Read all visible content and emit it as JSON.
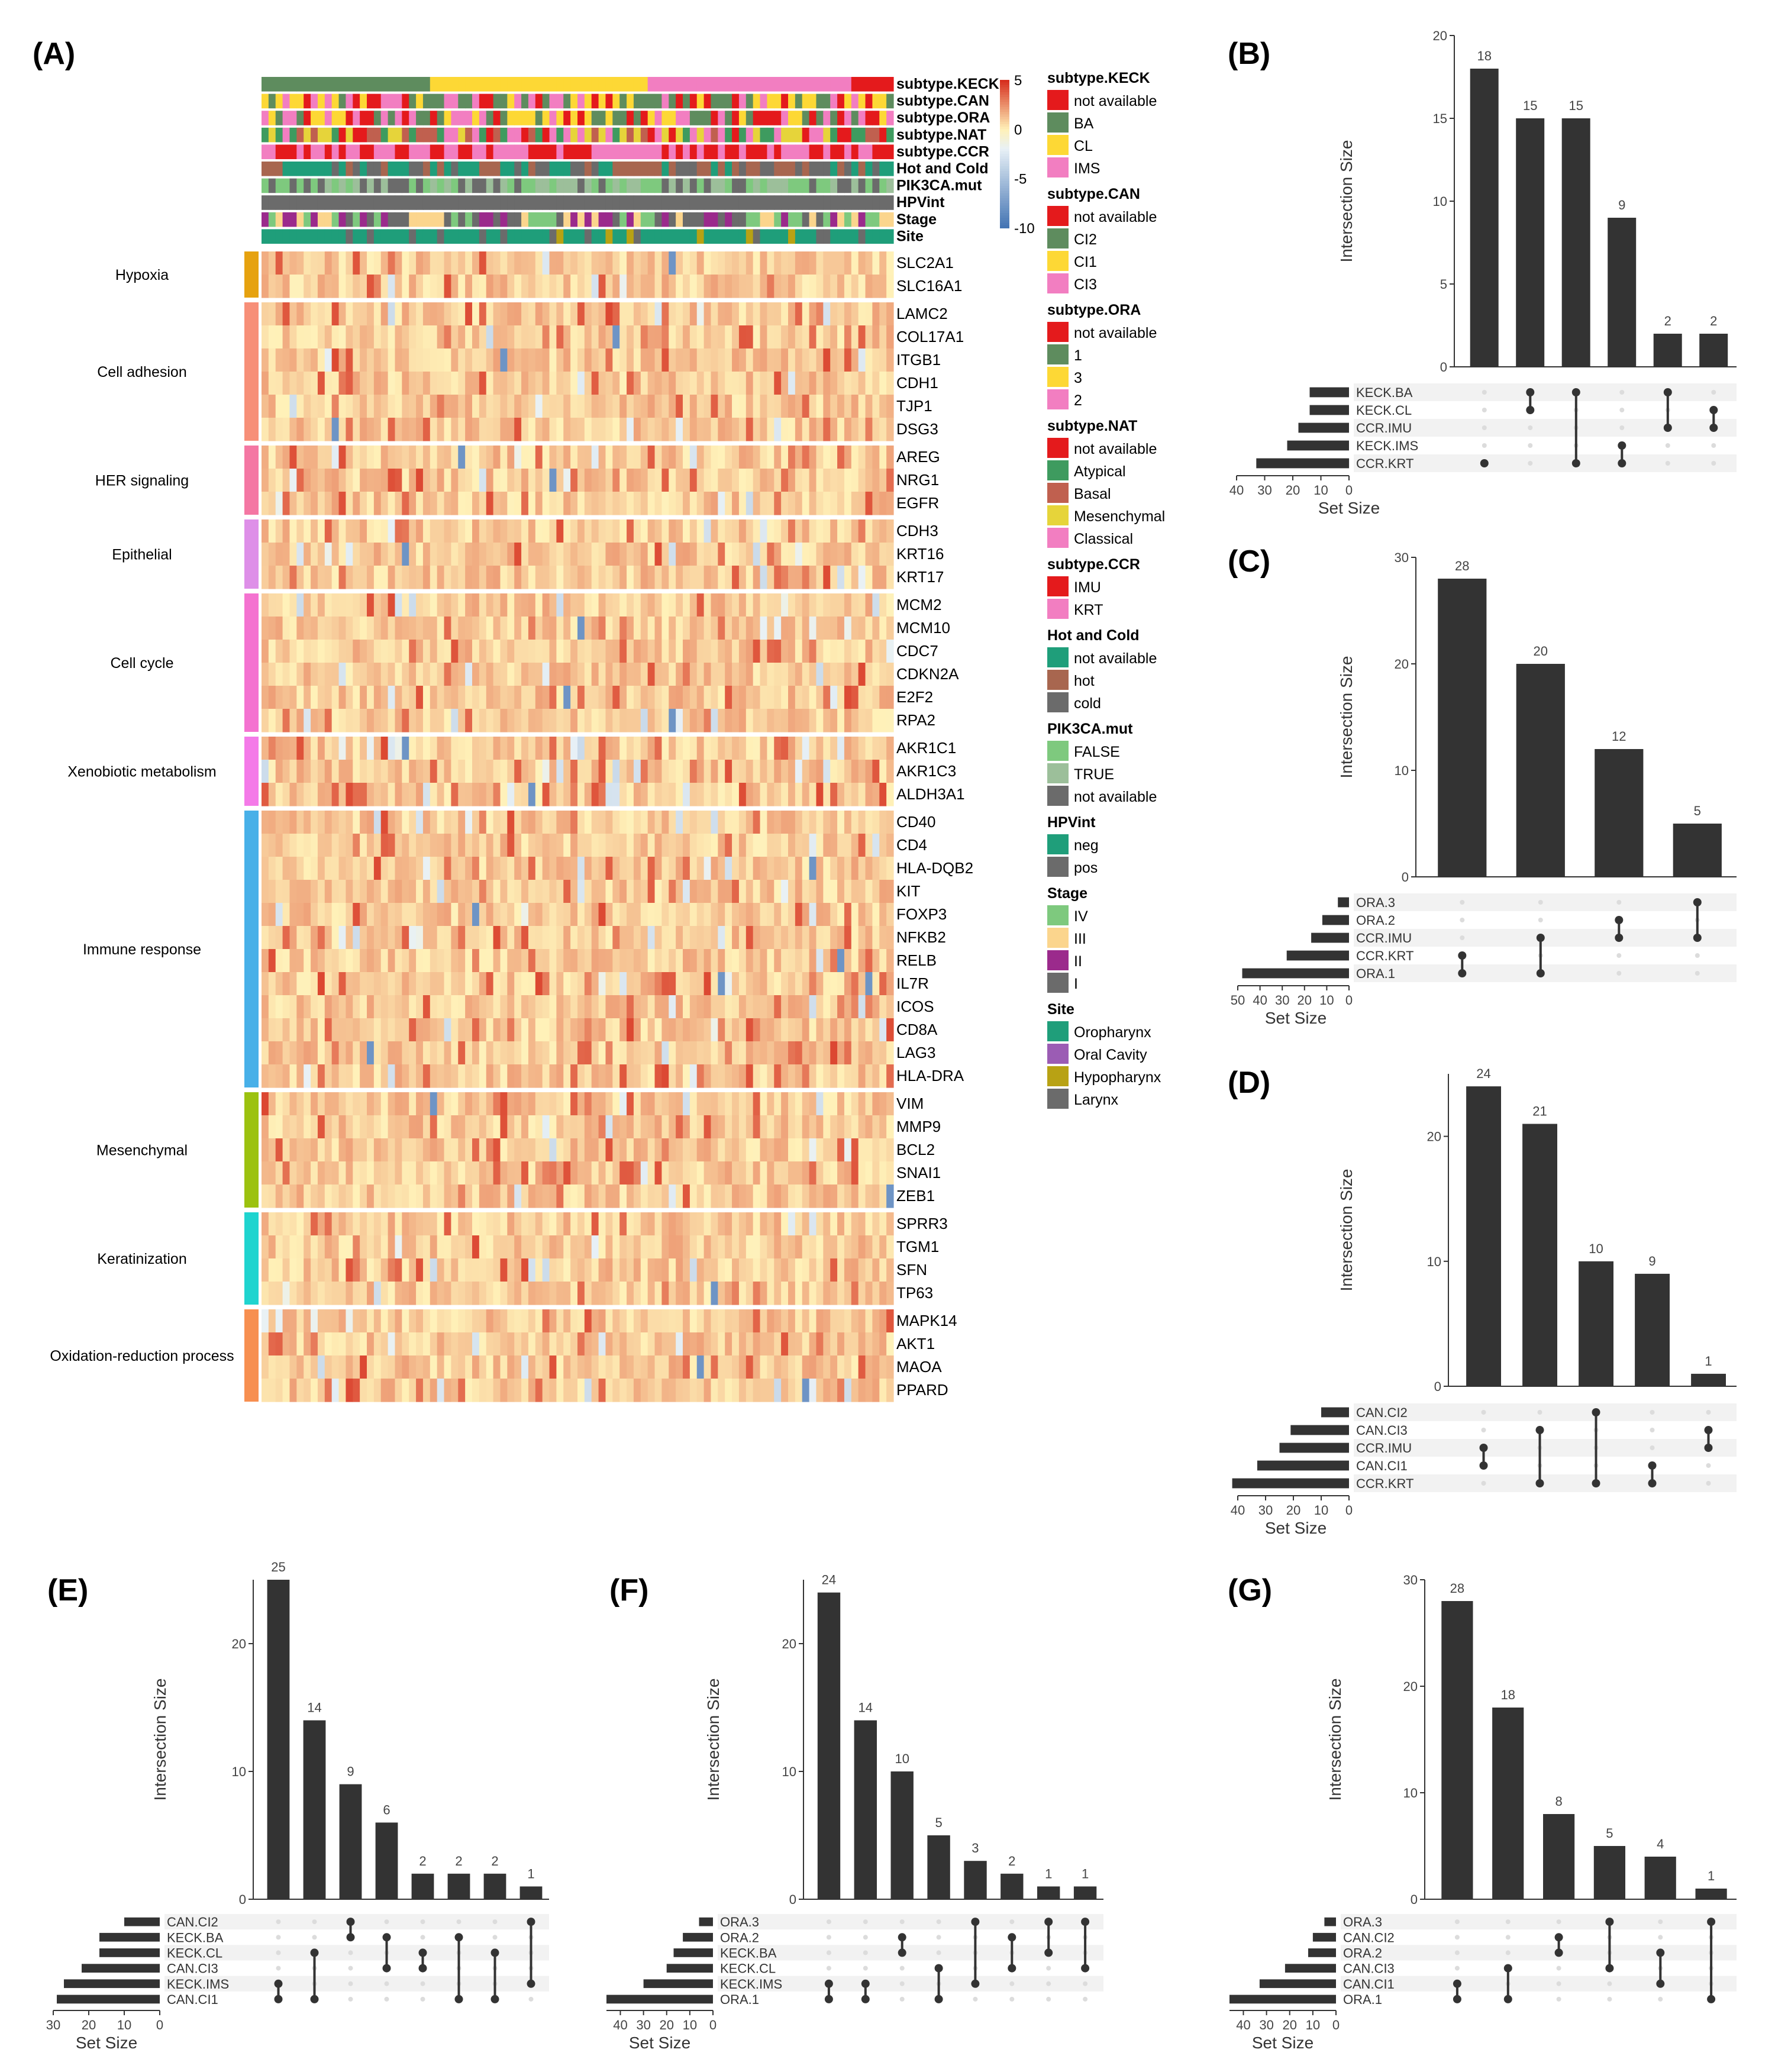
{
  "chart_data": [
    {
      "panel": "(A)",
      "type": "heatmap",
      "scale": {
        "ticks": [
          5,
          0,
          -5,
          -10
        ],
        "range": [
          -10,
          5
        ]
      },
      "annotation_tracks": [
        "subtype.KECK",
        "subtype.CAN",
        "subtype.ORA",
        "subtype.NAT",
        "subtype.CCR",
        "Hot and Cold",
        "PIK3CA.mut",
        "HPVint",
        "Stage",
        "Site"
      ],
      "legends": [
        {
          "title": "subtype.KECK",
          "items": [
            {
              "label": "not available",
              "color": "#e41a1c"
            },
            {
              "label": "BA",
              "color": "#5e8c5e"
            },
            {
              "label": "CL",
              "color": "#fdd835"
            },
            {
              "label": "IMS",
              "color": "#f27ec1"
            }
          ]
        },
        {
          "title": "subtype.CAN",
          "items": [
            {
              "label": "not available",
              "color": "#e41a1c"
            },
            {
              "label": "CI2",
              "color": "#5e8c5e"
            },
            {
              "label": "CI1",
              "color": "#fdd835"
            },
            {
              "label": "CI3",
              "color": "#f27ec1"
            }
          ]
        },
        {
          "title": "subtype.ORA",
          "items": [
            {
              "label": "not available",
              "color": "#e41a1c"
            },
            {
              "label": "1",
              "color": "#5e8c5e"
            },
            {
              "label": "3",
              "color": "#fdd835"
            },
            {
              "label": "2",
              "color": "#f27ec1"
            }
          ]
        },
        {
          "title": "subtype.NAT",
          "items": [
            {
              "label": "not available",
              "color": "#e41a1c"
            },
            {
              "label": "Atypical",
              "color": "#3e9b5f"
            },
            {
              "label": "Basal",
              "color": "#c0604f"
            },
            {
              "label": "Mesenchymal",
              "color": "#e6d43a"
            },
            {
              "label": "Classical",
              "color": "#f27ec1"
            }
          ]
        },
        {
          "title": "subtype.CCR",
          "items": [
            {
              "label": "IMU",
              "color": "#e41a1c"
            },
            {
              "label": "KRT",
              "color": "#f27ec1"
            }
          ]
        },
        {
          "title": "Hot and Cold",
          "items": [
            {
              "label": "not available",
              "color": "#1f9e7a"
            },
            {
              "label": "hot",
              "color": "#a8664f"
            },
            {
              "label": "cold",
              "color": "#6b6b6b"
            }
          ]
        },
        {
          "title": "PIK3CA.mut",
          "items": [
            {
              "label": "FALSE",
              "color": "#7ec97e"
            },
            {
              "label": "TRUE",
              "color": "#9cbf9a"
            },
            {
              "label": "not available",
              "color": "#6b6b6b"
            }
          ]
        },
        {
          "title": "HPVint",
          "items": [
            {
              "label": "neg",
              "color": "#1f9e7a"
            },
            {
              "label": "pos",
              "color": "#6b6b6b"
            }
          ]
        },
        {
          "title": "Stage",
          "items": [
            {
              "label": "IV",
              "color": "#7ec97e"
            },
            {
              "label": "III",
              "color": "#fbd58d"
            },
            {
              "label": "II",
              "color": "#9b2a8c"
            },
            {
              "label": "I",
              "color": "#6b6b6b"
            }
          ]
        },
        {
          "title": "Site",
          "items": [
            {
              "label": "Oropharynx",
              "color": "#1f9e7a"
            },
            {
              "label": "Oral Cavity",
              "color": "#9b5cb4"
            },
            {
              "label": "Hypopharynx",
              "color": "#b8a214"
            },
            {
              "label": "Larynx",
              "color": "#6b6b6b"
            }
          ]
        }
      ],
      "gene_groups": [
        {
          "name": "Hypoxia",
          "color": "#e6a20f",
          "genes": [
            "SLC2A1",
            "SLC16A1"
          ]
        },
        {
          "name": "Cell adhesion",
          "color": "#f78f78",
          "genes": [
            "LAMC2",
            "COL17A1",
            "ITGB1",
            "CDH1",
            "TJP1",
            "DSG3"
          ]
        },
        {
          "name": "HER signaling",
          "color": "#f477a3",
          "genes": [
            "AREG",
            "NRG1",
            "EGFR"
          ]
        },
        {
          "name": "Epithelial",
          "color": "#de8fe8",
          "genes": [
            "CDH3",
            "KRT16",
            "KRT17"
          ]
        },
        {
          "name": "Cell cycle",
          "color": "#f472d0",
          "genes": [
            "MCM2",
            "MCM10",
            "CDC7",
            "CDKN2A",
            "E2F2",
            "RPA2"
          ]
        },
        {
          "name": "Xenobiotic metabolism",
          "color": "#f47ae8",
          "genes": [
            "AKR1C1",
            "AKR1C3",
            "ALDH3A1"
          ]
        },
        {
          "name": "Immune response",
          "color": "#48b0e8",
          "genes": [
            "CD40",
            "CD4",
            "HLA-DQB2",
            "KIT",
            "FOXP3",
            "NFKB2",
            "RELB",
            "IL7R",
            "ICOS",
            "CD8A",
            "LAG3",
            "HLA-DRA"
          ]
        },
        {
          "name": "Mesenchymal",
          "color": "#9cc20f",
          "genes": [
            "VIM",
            "MMP9",
            "BCL2",
            "SNAI1",
            "ZEB1"
          ]
        },
        {
          "name": "Keratinization",
          "color": "#1fd4cf",
          "genes": [
            "SPRR3",
            "TGM1",
            "SFN",
            "TP63"
          ]
        },
        {
          "name": "Oxidation-reduction process",
          "color": "#f78f50",
          "genes": [
            "MAPK14",
            "AKT1",
            "MAOA",
            "PPARD"
          ]
        }
      ]
    },
    {
      "panel": "(B)",
      "type": "bar",
      "ylabel": "Intersection Size",
      "xlabel": "Set Size",
      "ylim": [
        0,
        20
      ],
      "yticks": [
        0,
        5,
        10,
        15,
        20
      ],
      "values": [
        18,
        15,
        15,
        9,
        2,
        2
      ],
      "sets": [
        "KECK.BA",
        "KECK.CL",
        "CCR.IMU",
        "KECK.IMS",
        "CCR.KRT"
      ],
      "set_sizes": [
        14,
        14,
        18,
        22,
        33
      ],
      "set_ticks": [
        40,
        30,
        20,
        10,
        0
      ],
      "set_max": 40,
      "matrix": [
        [
          4
        ],
        [
          0,
          1
        ],
        [
          0,
          4
        ],
        [
          3,
          4
        ],
        [
          2,
          0
        ],
        [
          2,
          1
        ]
      ]
    },
    {
      "panel": "(C)",
      "type": "bar",
      "ylabel": "Intersection Size",
      "xlabel": "Set Size",
      "ylim": [
        0,
        30
      ],
      "yticks": [
        0,
        10,
        20,
        30
      ],
      "values": [
        28,
        20,
        12,
        5
      ],
      "sets": [
        "ORA.3",
        "ORA.2",
        "CCR.IMU",
        "CCR.KRT",
        "ORA.1"
      ],
      "set_sizes": [
        5,
        12,
        17,
        28,
        48
      ],
      "set_ticks": [
        50,
        40,
        30,
        20,
        10,
        0
      ],
      "set_max": 50,
      "matrix": [
        [
          3,
          4
        ],
        [
          2,
          4
        ],
        [
          1,
          2
        ],
        [
          0,
          2
        ]
      ]
    },
    {
      "panel": "(D)",
      "type": "bar",
      "ylabel": "Intersection Size",
      "xlabel": "Set Size",
      "ylim": [
        0,
        25
      ],
      "yticks": [
        0,
        10,
        20
      ],
      "values": [
        24,
        21,
        10,
        9,
        1
      ],
      "sets": [
        "CAN.CI2",
        "CAN.CI3",
        "CCR.IMU",
        "CAN.CI1",
        "CCR.KRT"
      ],
      "set_sizes": [
        10,
        21,
        25,
        33,
        42
      ],
      "set_ticks": [
        40,
        30,
        20,
        10,
        0
      ],
      "set_max": 40,
      "matrix": [
        [
          2,
          3
        ],
        [
          1,
          4
        ],
        [
          0,
          4
        ],
        [
          3,
          4
        ],
        [
          1,
          2
        ]
      ]
    },
    {
      "panel": "(E)",
      "type": "bar",
      "ylabel": "Intersection Size",
      "xlabel": "Set Size",
      "ylim": [
        0,
        25
      ],
      "yticks": [
        0,
        10,
        20
      ],
      "values": [
        25,
        14,
        9,
        6,
        2,
        2,
        2,
        1
      ],
      "sets": [
        "CAN.CI2",
        "KECK.BA",
        "KECK.CL",
        "CAN.CI3",
        "KECK.IMS",
        "CAN.CI1"
      ],
      "set_sizes": [
        10,
        17,
        17,
        22,
        27,
        29
      ],
      "set_ticks": [
        30,
        20,
        10,
        0
      ],
      "set_max": 30,
      "matrix": [
        [
          4,
          5
        ],
        [
          2,
          5
        ],
        [
          0,
          1
        ],
        [
          1,
          3
        ],
        [
          2,
          3
        ],
        [
          1,
          5
        ],
        [
          2,
          5
        ],
        [
          0,
          4
        ]
      ]
    },
    {
      "panel": "(F)",
      "type": "bar",
      "ylabel": "Intersection Size",
      "xlabel": "Set Size",
      "ylim": [
        0,
        25
      ],
      "yticks": [
        0,
        10,
        20
      ],
      "values": [
        24,
        14,
        10,
        5,
        3,
        2,
        1,
        1
      ],
      "sets": [
        "ORA.3",
        "ORA.2",
        "KECK.BA",
        "KECK.CL",
        "KECK.IMS",
        "ORA.1"
      ],
      "set_sizes": [
        6,
        13,
        17,
        20,
        30,
        46
      ],
      "set_ticks": [
        40,
        30,
        20,
        10,
        0
      ],
      "set_max": 46,
      "matrix": [
        [
          4,
          5
        ],
        [
          4,
          5
        ],
        [
          1,
          2
        ],
        [
          3,
          5
        ],
        [
          0,
          4
        ],
        [
          1,
          3
        ],
        [
          0,
          2
        ],
        [
          0,
          3
        ]
      ]
    },
    {
      "panel": "(G)",
      "type": "bar",
      "ylabel": "Intersection Size",
      "xlabel": "Set Size",
      "ylim": [
        0,
        30
      ],
      "yticks": [
        0,
        10,
        20,
        30
      ],
      "values": [
        28,
        18,
        8,
        5,
        4,
        1
      ],
      "sets": [
        "ORA.3",
        "CAN.CI2",
        "ORA.2",
        "CAN.CI3",
        "CAN.CI1",
        "ORA.1"
      ],
      "set_sizes": [
        5,
        10,
        12,
        22,
        33,
        46
      ],
      "set_ticks": [
        40,
        30,
        20,
        10,
        0
      ],
      "set_max": 46,
      "matrix": [
        [
          4,
          5
        ],
        [
          3,
          5
        ],
        [
          1,
          2
        ],
        [
          0,
          3
        ],
        [
          2,
          4
        ],
        [
          0,
          5
        ]
      ]
    }
  ]
}
